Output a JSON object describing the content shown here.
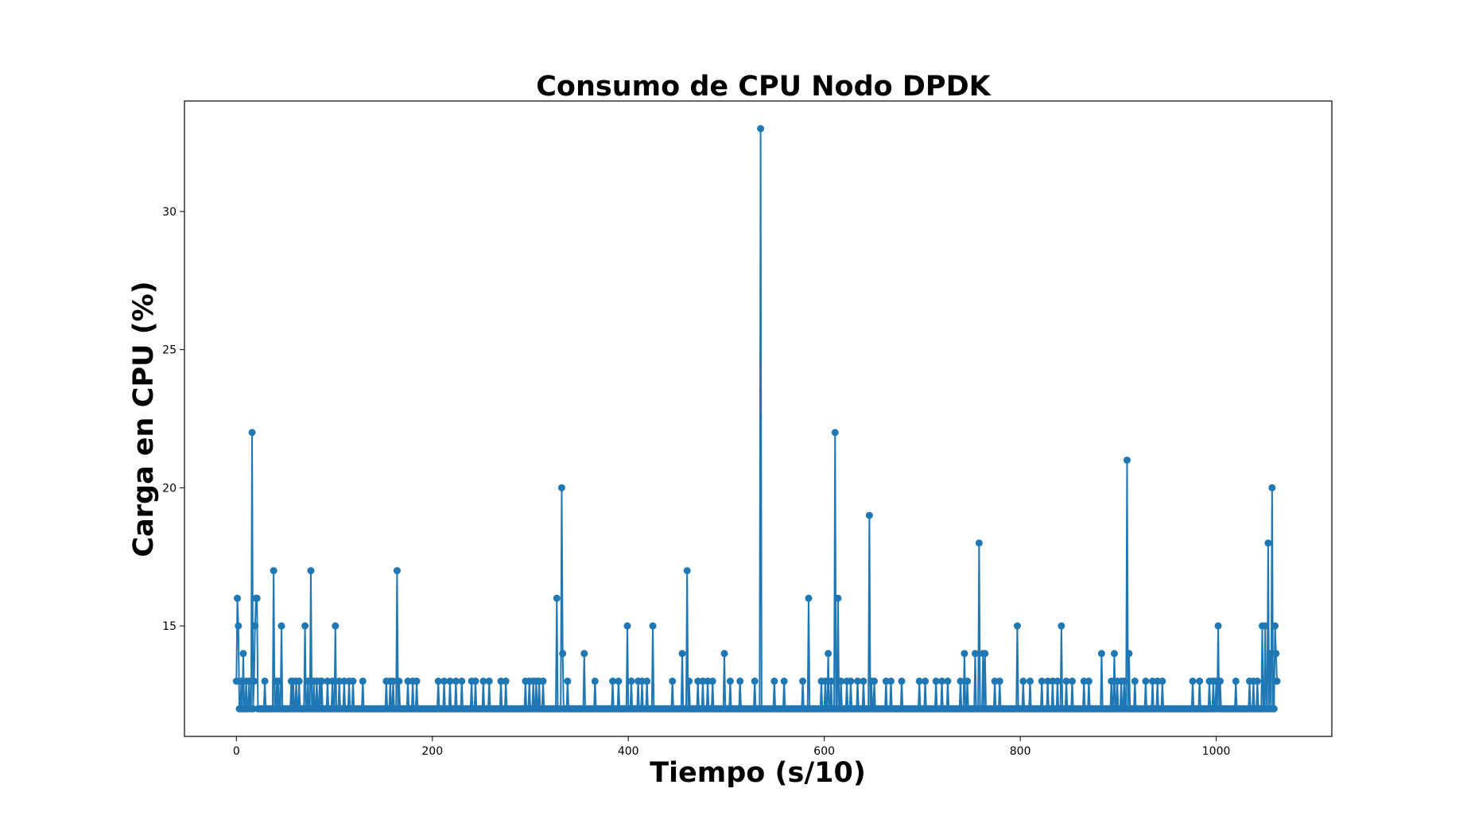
{
  "chart_data": {
    "type": "line",
    "title": "Consumo de CPU Nodo DPDK",
    "xlabel": "Tiempo (s/10)",
    "ylabel": "Carga en CPU (%)",
    "xlim": [
      -53,
      1118
    ],
    "ylim": [
      11.0,
      34.0
    ],
    "x_ticks": [
      0,
      200,
      400,
      600,
      800,
      1000
    ],
    "y_ticks": [
      15,
      20,
      25,
      30
    ],
    "grid": false,
    "legend": "none",
    "color": "#1f77b4",
    "marker": "circle",
    "baseline": 12,
    "x_max": 1062,
    "series": [
      {
        "points": [
          [
            0,
            13
          ],
          [
            1,
            16
          ],
          [
            2,
            15
          ],
          [
            3,
            12
          ],
          [
            5,
            13
          ],
          [
            7,
            14
          ],
          [
            9,
            12
          ],
          [
            10,
            13
          ],
          [
            13,
            13
          ],
          [
            15,
            12
          ],
          [
            16,
            22
          ],
          [
            18,
            13
          ],
          [
            19,
            15
          ],
          [
            20,
            16
          ],
          [
            21,
            16
          ],
          [
            29,
            13
          ],
          [
            38,
            17
          ],
          [
            41,
            13
          ],
          [
            43,
            13
          ],
          [
            46,
            15
          ],
          [
            56,
            13
          ],
          [
            58,
            13
          ],
          [
            61,
            13
          ],
          [
            64,
            13
          ],
          [
            70,
            15
          ],
          [
            73,
            13
          ],
          [
            76,
            17
          ],
          [
            79,
            13
          ],
          [
            82,
            13
          ],
          [
            85,
            13
          ],
          [
            87,
            13
          ],
          [
            93,
            13
          ],
          [
            98,
            13
          ],
          [
            101,
            15
          ],
          [
            105,
            13
          ],
          [
            110,
            13
          ],
          [
            115,
            13
          ],
          [
            119,
            13
          ],
          [
            129,
            13
          ],
          [
            153,
            13
          ],
          [
            157,
            13
          ],
          [
            160,
            13
          ],
          [
            164,
            17
          ],
          [
            166,
            13
          ],
          [
            175,
            13
          ],
          [
            180,
            13
          ],
          [
            184,
            13
          ],
          [
            206,
            13
          ],
          [
            212,
            13
          ],
          [
            218,
            13
          ],
          [
            224,
            13
          ],
          [
            230,
            13
          ],
          [
            240,
            13
          ],
          [
            244,
            13
          ],
          [
            252,
            13
          ],
          [
            258,
            13
          ],
          [
            270,
            13
          ],
          [
            275,
            13
          ],
          [
            295,
            13
          ],
          [
            299,
            13
          ],
          [
            303,
            13
          ],
          [
            306,
            13
          ],
          [
            309,
            13
          ],
          [
            313,
            13
          ],
          [
            327,
            16
          ],
          [
            332,
            20
          ],
          [
            333,
            14
          ],
          [
            338,
            13
          ],
          [
            355,
            14
          ],
          [
            366,
            13
          ],
          [
            384,
            13
          ],
          [
            390,
            13
          ],
          [
            399,
            15
          ],
          [
            403,
            13
          ],
          [
            410,
            13
          ],
          [
            414,
            13
          ],
          [
            419,
            13
          ],
          [
            425,
            15
          ],
          [
            445,
            13
          ],
          [
            455,
            14
          ],
          [
            460,
            17
          ],
          [
            462,
            13
          ],
          [
            471,
            13
          ],
          [
            476,
            13
          ],
          [
            481,
            13
          ],
          [
            486,
            13
          ],
          [
            498,
            14
          ],
          [
            504,
            13
          ],
          [
            514,
            13
          ],
          [
            529,
            13
          ],
          [
            535,
            33
          ],
          [
            549,
            13
          ],
          [
            559,
            13
          ],
          [
            578,
            13
          ],
          [
            584,
            16
          ],
          [
            597,
            13
          ],
          [
            601,
            13
          ],
          [
            604,
            14
          ],
          [
            607,
            13
          ],
          [
            611,
            22
          ],
          [
            614,
            16
          ],
          [
            617,
            13
          ],
          [
            623,
            13
          ],
          [
            627,
            13
          ],
          [
            634,
            13
          ],
          [
            640,
            13
          ],
          [
            646,
            19
          ],
          [
            648,
            13
          ],
          [
            651,
            13
          ],
          [
            663,
            13
          ],
          [
            668,
            13
          ],
          [
            679,
            13
          ],
          [
            697,
            13
          ],
          [
            703,
            13
          ],
          [
            714,
            13
          ],
          [
            720,
            13
          ],
          [
            726,
            13
          ],
          [
            739,
            13
          ],
          [
            743,
            14
          ],
          [
            746,
            13
          ],
          [
            754,
            14
          ],
          [
            758,
            18
          ],
          [
            762,
            14
          ],
          [
            764,
            14
          ],
          [
            774,
            13
          ],
          [
            779,
            13
          ],
          [
            797,
            15
          ],
          [
            803,
            13
          ],
          [
            810,
            13
          ],
          [
            822,
            13
          ],
          [
            828,
            13
          ],
          [
            833,
            13
          ],
          [
            838,
            13
          ],
          [
            842,
            15
          ],
          [
            847,
            13
          ],
          [
            853,
            13
          ],
          [
            865,
            13
          ],
          [
            870,
            13
          ],
          [
            883,
            14
          ],
          [
            893,
            13
          ],
          [
            896,
            14
          ],
          [
            899,
            13
          ],
          [
            903,
            13
          ],
          [
            906,
            13
          ],
          [
            909,
            21
          ],
          [
            911,
            14
          ],
          [
            917,
            13
          ],
          [
            928,
            13
          ],
          [
            935,
            13
          ],
          [
            940,
            13
          ],
          [
            945,
            13
          ],
          [
            976,
            13
          ],
          [
            983,
            13
          ],
          [
            993,
            13
          ],
          [
            997,
            13
          ],
          [
            1000,
            13
          ],
          [
            1002,
            15
          ],
          [
            1004,
            13
          ],
          [
            1020,
            13
          ],
          [
            1034,
            13
          ],
          [
            1038,
            13
          ],
          [
            1042,
            13
          ],
          [
            1047,
            15
          ],
          [
            1050,
            15
          ],
          [
            1053,
            18
          ],
          [
            1055,
            14
          ],
          [
            1057,
            20
          ],
          [
            1059,
            12
          ],
          [
            1060,
            15
          ],
          [
            1061,
            14
          ],
          [
            1062,
            13
          ]
        ]
      }
    ]
  }
}
